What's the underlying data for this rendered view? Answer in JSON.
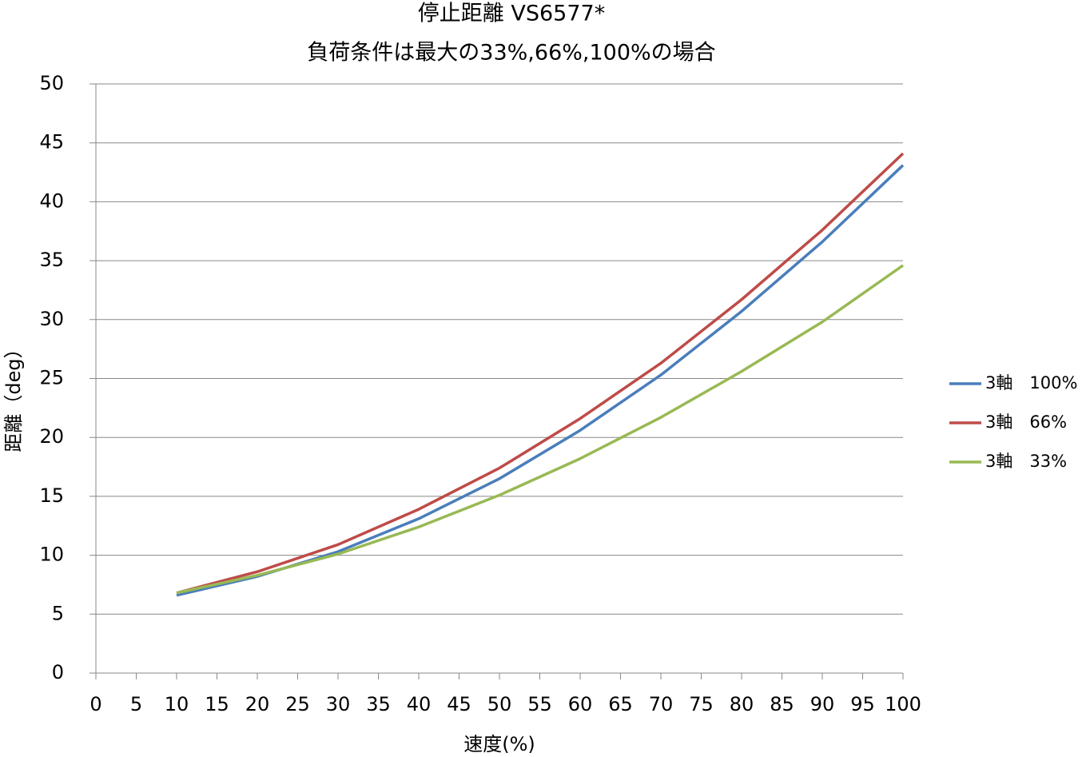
{
  "chart_data": {
    "type": "line",
    "title": "停止距離 VS6577*",
    "subtitle": "負荷条件は最大の33%,66%,100%の場合",
    "x_label": "速度(%)",
    "y_label": "距離（deg）",
    "x": [
      10,
      20,
      30,
      40,
      50,
      60,
      70,
      80,
      90,
      100
    ],
    "series": [
      {
        "name": "3軸　100%",
        "color": "#4a7ebb",
        "values": [
          6.6,
          8.2,
          10.3,
          13.1,
          16.5,
          20.6,
          25.3,
          30.7,
          36.6,
          43.1
        ]
      },
      {
        "name": "3軸　66%",
        "color": "#be4b48",
        "values": [
          6.8,
          8.6,
          10.9,
          13.9,
          17.4,
          21.6,
          26.3,
          31.7,
          37.6,
          44.1
        ]
      },
      {
        "name": "3軸　33%",
        "color": "#98b954",
        "values": [
          6.8,
          8.3,
          10.1,
          12.4,
          15.1,
          18.2,
          21.7,
          25.6,
          29.8,
          34.6
        ]
      }
    ],
    "xlim": [
      0,
      100
    ],
    "xticks": [
      0,
      5,
      10,
      15,
      20,
      25,
      30,
      35,
      40,
      45,
      50,
      55,
      60,
      65,
      70,
      75,
      80,
      85,
      90,
      95,
      100
    ],
    "ylim": [
      0,
      50
    ],
    "yticks": [
      0,
      5,
      10,
      15,
      20,
      25,
      30,
      35,
      40,
      45,
      50
    ],
    "grid": true,
    "legend": "right"
  }
}
